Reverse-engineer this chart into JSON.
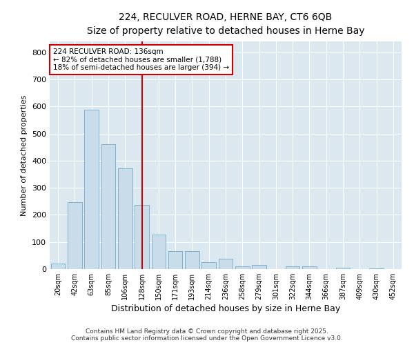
{
  "title_line1": "224, RECULVER ROAD, HERNE BAY, CT6 6QB",
  "title_line2": "Size of property relative to detached houses in Herne Bay",
  "xlabel": "Distribution of detached houses by size in Herne Bay",
  "ylabel": "Number of detached properties",
  "categories": [
    "20sqm",
    "42sqm",
    "63sqm",
    "85sqm",
    "106sqm",
    "128sqm",
    "150sqm",
    "171sqm",
    "193sqm",
    "214sqm",
    "236sqm",
    "258sqm",
    "279sqm",
    "301sqm",
    "322sqm",
    "344sqm",
    "366sqm",
    "387sqm",
    "409sqm",
    "430sqm",
    "452sqm"
  ],
  "values": [
    20,
    248,
    588,
    460,
    372,
    238,
    128,
    65,
    65,
    25,
    38,
    10,
    15,
    0,
    10,
    10,
    0,
    5,
    0,
    2,
    0
  ],
  "bar_color": "#c9dcea",
  "bar_edge_color": "#7baecf",
  "vline_index": 5,
  "vline_color": "#cc0000",
  "annotation_line1": "224 RECULVER ROAD: 136sqm",
  "annotation_line2": "← 82% of detached houses are smaller (1,788)",
  "annotation_line3": "18% of semi-detached houses are larger (394) →",
  "annotation_box_edgecolor": "#cc0000",
  "plot_background": "#dce8f0",
  "ylim": [
    0,
    840
  ],
  "yticks": [
    0,
    100,
    200,
    300,
    400,
    500,
    600,
    700,
    800
  ],
  "footer_line1": "Contains HM Land Registry data © Crown copyright and database right 2025.",
  "footer_line2": "Contains public sector information licensed under the Open Government Licence v3.0."
}
